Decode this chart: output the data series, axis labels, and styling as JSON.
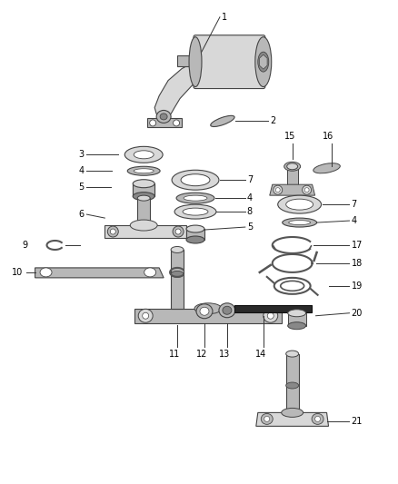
{
  "bg_color": "#ffffff",
  "part_gray_light": "#d8d8d8",
  "part_gray_mid": "#b8b8b8",
  "part_gray_dark": "#888888",
  "part_gray_darker": "#555555",
  "edge_color": "#444444",
  "leader_color": "#333333",
  "text_color": "#000000",
  "figsize": [
    4.38,
    5.33
  ],
  "dpi": 100
}
